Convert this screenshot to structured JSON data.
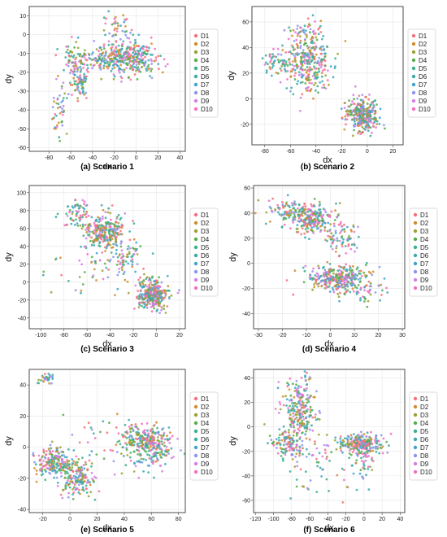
{
  "series_names": [
    "D1",
    "D2",
    "D3",
    "D4",
    "D5",
    "D6",
    "D7",
    "D8",
    "D9",
    "D10"
  ],
  "series_colors": [
    "#f7717b",
    "#d18c2c",
    "#9aa235",
    "#56ad49",
    "#3ab08a",
    "#39aca8",
    "#3ca5cc",
    "#8d95f0",
    "#d57fe6",
    "#f66fbf"
  ],
  "chart_data": [
    {
      "type": "scatter",
      "caption": "(a) Scenario 1",
      "xlabel": "dx",
      "ylabel": "dy",
      "xlim": [
        -98,
        45
      ],
      "ylim": [
        -62,
        15
      ],
      "xticks": [
        -80,
        -60,
        -40,
        -20,
        0,
        20,
        40
      ],
      "yticks": [
        -60,
        -50,
        -40,
        -30,
        -20,
        -10,
        0,
        10
      ],
      "grid": true,
      "legend": "right",
      "clusters": [
        {
          "cx": -10,
          "cy": -12,
          "sx": 14,
          "sy": 5,
          "n": 260
        },
        {
          "cx": -55,
          "cy": -15,
          "sx": 6,
          "sy": 5,
          "n": 80
        },
        {
          "cx": -52,
          "cy": -27,
          "sx": 4,
          "sy": 4,
          "n": 60
        },
        {
          "cx": -70,
          "cy": -40,
          "sx": 4,
          "sy": 6,
          "n": 45
        },
        {
          "cx": -35,
          "cy": -13,
          "sx": 10,
          "sy": 3,
          "n": 60
        },
        {
          "cx": -18,
          "cy": 0,
          "sx": 6,
          "sy": 6,
          "n": 45
        },
        {
          "cx": 5,
          "cy": -12,
          "sx": 8,
          "sy": 4,
          "n": 60
        }
      ]
    },
    {
      "type": "scatter",
      "caption": "(b) Scenario 2",
      "xlabel": "dx",
      "ylabel": "dy",
      "xlim": [
        -90,
        28
      ],
      "ylim": [
        -36,
        72
      ],
      "xticks": [
        -80,
        -60,
        -40,
        -20,
        0,
        20
      ],
      "yticks": [
        -20,
        0,
        20,
        40,
        60
      ],
      "grid": true,
      "legend": "right",
      "clusters": [
        {
          "cx": -45,
          "cy": 28,
          "sx": 9,
          "sy": 12,
          "n": 260
        },
        {
          "cx": -65,
          "cy": 28,
          "sx": 7,
          "sy": 7,
          "n": 80
        },
        {
          "cx": -48,
          "cy": 50,
          "sx": 6,
          "sy": 7,
          "n": 50
        },
        {
          "cx": -3,
          "cy": -13,
          "sx": 7,
          "sy": 6,
          "n": 320
        }
      ]
    },
    {
      "type": "scatter",
      "caption": "(c) Scenario 3",
      "xlabel": "dx",
      "ylabel": "dy",
      "xlim": [
        -110,
        25
      ],
      "ylim": [
        -52,
        108
      ],
      "xticks": [
        -100,
        -80,
        -60,
        -40,
        -20,
        0,
        20
      ],
      "yticks": [
        -40,
        -20,
        0,
        20,
        40,
        60,
        80,
        100
      ],
      "grid": true,
      "legend": "right",
      "clusters": [
        {
          "cx": -45,
          "cy": 57,
          "sx": 9,
          "sy": 11,
          "n": 270
        },
        {
          "cx": -68,
          "cy": 75,
          "sx": 6,
          "sy": 7,
          "n": 60
        },
        {
          "cx": -28,
          "cy": 25,
          "sx": 9,
          "sy": 12,
          "n": 70
        },
        {
          "cx": -3,
          "cy": -14,
          "sx": 7,
          "sy": 8,
          "n": 320
        },
        {
          "cx": -60,
          "cy": 15,
          "sx": 15,
          "sy": 18,
          "n": 40
        }
      ]
    },
    {
      "type": "scatter",
      "caption": "(d) Scenario 4",
      "xlabel": "dx",
      "ylabel": "dy",
      "xlim": [
        -32,
        31
      ],
      "ylim": [
        -52,
        62
      ],
      "xticks": [
        -30,
        -20,
        -10,
        0,
        10,
        20,
        30
      ],
      "yticks": [
        -40,
        -20,
        0,
        20,
        40,
        60
      ],
      "grid": true,
      "legend": "right",
      "clusters": [
        {
          "cx": -8,
          "cy": 36,
          "sx": 5,
          "sy": 6,
          "n": 250
        },
        {
          "cx": -18,
          "cy": 42,
          "sx": 4,
          "sy": 5,
          "n": 60
        },
        {
          "cx": 5,
          "cy": 20,
          "sx": 4,
          "sy": 6,
          "n": 70
        },
        {
          "cx": 3,
          "cy": -12,
          "sx": 6,
          "sy": 5,
          "n": 300
        },
        {
          "cx": 14,
          "cy": -20,
          "sx": 5,
          "sy": 8,
          "n": 50
        }
      ]
    },
    {
      "type": "scatter",
      "caption": "(e) Scenario 5",
      "xlabel": "dx",
      "ylabel": "dy",
      "xlim": [
        -30,
        85
      ],
      "ylim": [
        -42,
        50
      ],
      "xticks": [
        -20,
        0,
        20,
        40,
        60,
        80
      ],
      "yticks": [
        -40,
        -20,
        0,
        20,
        40
      ],
      "grid": true,
      "legend": "right",
      "clusters": [
        {
          "cx": -12,
          "cy": -10,
          "sx": 7,
          "sy": 5,
          "n": 200
        },
        {
          "cx": 5,
          "cy": -20,
          "sx": 6,
          "sy": 6,
          "n": 150
        },
        {
          "cx": 60,
          "cy": 2,
          "sx": 8,
          "sy": 7,
          "n": 280
        },
        {
          "cx": 45,
          "cy": 8,
          "sx": 6,
          "sy": 4,
          "n": 50
        },
        {
          "cx": -17,
          "cy": 44,
          "sx": 3,
          "sy": 2,
          "n": 30
        },
        {
          "cx": 25,
          "cy": -5,
          "sx": 12,
          "sy": 12,
          "n": 40
        }
      ]
    },
    {
      "type": "scatter",
      "caption": "(f) Scenario 6",
      "xlabel": "dx",
      "ylabel": "dy",
      "xlim": [
        -122,
        45
      ],
      "ylim": [
        -70,
        47
      ],
      "xticks": [
        -120,
        -100,
        -80,
        -60,
        -40,
        -20,
        0,
        20,
        40
      ],
      "yticks": [
        -60,
        -40,
        -20,
        0,
        20,
        40
      ],
      "grid": true,
      "legend": "right",
      "clusters": [
        {
          "cx": -70,
          "cy": 15,
          "sx": 9,
          "sy": 12,
          "n": 230
        },
        {
          "cx": -85,
          "cy": -12,
          "sx": 10,
          "sy": 7,
          "n": 120
        },
        {
          "cx": -3,
          "cy": -13,
          "sx": 12,
          "sy": 4,
          "n": 230
        },
        {
          "cx": 0,
          "cy": -30,
          "sx": 6,
          "sy": 7,
          "n": 50
        },
        {
          "cx": -50,
          "cy": -30,
          "sx": 18,
          "sy": 15,
          "n": 60
        }
      ]
    }
  ]
}
